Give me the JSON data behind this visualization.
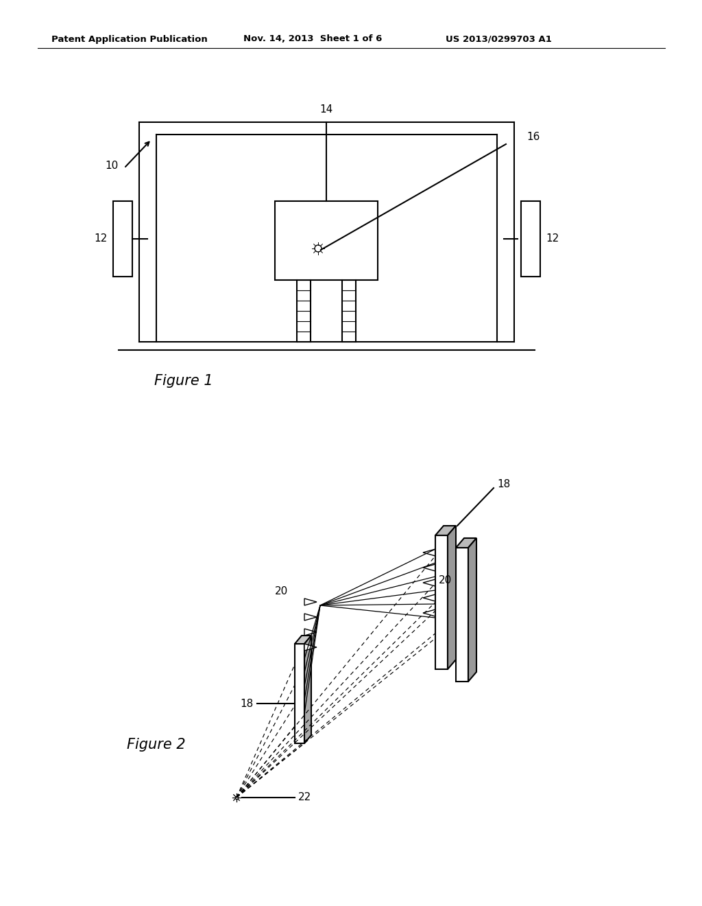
{
  "bg_color": "#ffffff",
  "line_color": "#000000",
  "header_left": "Patent Application Publication",
  "header_mid": "Nov. 14, 2013  Sheet 1 of 6",
  "header_right": "US 2013/0299703 A1",
  "fig1_label": "Figure 1",
  "fig2_label": "Figure 2",
  "label_10": "10",
  "label_12a": "12",
  "label_12b": "12",
  "label_14": "14",
  "label_16": "16",
  "label_18a": "18",
  "label_18b": "18",
  "label_20a": "20",
  "label_20b": "20",
  "label_22": "22"
}
